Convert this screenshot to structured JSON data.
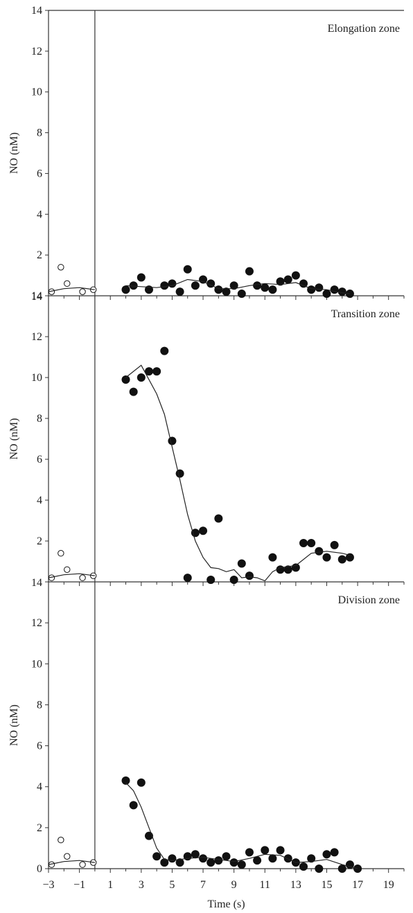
{
  "chart_data": [
    {
      "type": "scatter",
      "title": "Elongation zone",
      "xlabel": "",
      "ylabel": "NO (nM)",
      "xlim": [
        -3,
        20
      ],
      "ylim": [
        0,
        14
      ],
      "y_ticks": [
        14,
        12,
        10,
        8,
        6,
        4,
        2
      ],
      "bottom_tick_label": "14",
      "vertical_line_x": 0,
      "series": [
        {
          "marker": "open-circle",
          "x": [
            -2.8,
            -2.2,
            -1.8,
            -0.8,
            -0.1
          ],
          "y": [
            0.2,
            1.4,
            0.6,
            0.2,
            0.3
          ]
        },
        {
          "marker": "filled-circle",
          "x": [
            2.0,
            2.5,
            3.0,
            3.5,
            4.5,
            5.0,
            5.5,
            6.0,
            6.5,
            7.0,
            7.5,
            8.0,
            8.5,
            9.0,
            9.5,
            10.0,
            10.5,
            11.0,
            11.5,
            12.0,
            12.5,
            13.0,
            13.5,
            14.0,
            14.5,
            15.0,
            15.5,
            16.0,
            16.5
          ],
          "y": [
            0.3,
            0.5,
            0.9,
            0.3,
            0.5,
            0.6,
            0.2,
            1.3,
            0.5,
            0.8,
            0.6,
            0.3,
            0.2,
            0.5,
            0.1,
            1.2,
            0.5,
            0.4,
            0.3,
            0.7,
            0.8,
            1.0,
            0.6,
            0.3,
            0.4,
            0.1,
            0.3,
            0.2,
            0.1
          ]
        },
        {
          "marker": "line",
          "x": [
            -3,
            -2,
            -1,
            0
          ],
          "y": [
            0.2,
            0.35,
            0.4,
            0.3
          ]
        },
        {
          "marker": "line",
          "x": [
            2,
            3,
            4,
            5,
            6,
            7,
            8,
            9,
            10,
            11,
            12,
            13,
            14,
            15,
            16,
            16.5
          ],
          "y": [
            0.5,
            0.45,
            0.4,
            0.5,
            0.8,
            0.7,
            0.35,
            0.35,
            0.5,
            0.6,
            0.55,
            0.65,
            0.35,
            0.3,
            0.15,
            0.1
          ]
        }
      ]
    },
    {
      "type": "scatter",
      "title": "Transition zone",
      "xlabel": "",
      "ylabel": "NO (nM)",
      "xlim": [
        -3,
        20
      ],
      "ylim": [
        0,
        14
      ],
      "y_ticks": [
        14,
        12,
        10,
        8,
        6,
        4,
        2
      ],
      "bottom_tick_label": "14",
      "vertical_line_x": 0,
      "series": [
        {
          "marker": "open-circle",
          "x": [
            -2.8,
            -2.2,
            -1.8,
            -0.8,
            -0.1
          ],
          "y": [
            0.2,
            1.4,
            0.6,
            0.2,
            0.3
          ]
        },
        {
          "marker": "filled-circle",
          "x": [
            2.0,
            2.5,
            3.0,
            3.5,
            4.0,
            4.5,
            5.0,
            5.5,
            6.0,
            6.5,
            7.0,
            7.5,
            8.0,
            9.0,
            9.5,
            10.0,
            11.5,
            12.0,
            12.5,
            13.0,
            13.5,
            14.0,
            14.5,
            15.0,
            15.5,
            16.0,
            16.5
          ],
          "y": [
            9.9,
            9.3,
            10.0,
            10.3,
            10.3,
            11.3,
            6.9,
            5.3,
            0.2,
            2.4,
            2.5,
            0.1,
            3.1,
            0.1,
            0.9,
            0.3,
            1.2,
            0.6,
            0.6,
            0.7,
            1.9,
            1.9,
            1.5,
            1.2,
            1.8,
            1.1,
            1.2
          ]
        },
        {
          "marker": "line",
          "x": [
            -3,
            -2,
            -1,
            0
          ],
          "y": [
            0.2,
            0.35,
            0.4,
            0.3
          ]
        },
        {
          "marker": "line",
          "x": [
            2,
            3,
            4,
            4.5,
            5,
            5.5,
            6,
            6.5,
            7,
            7.5,
            8,
            8.5,
            9,
            9.5,
            10,
            10.5,
            11,
            11.5,
            12,
            13,
            14,
            15,
            16,
            16.5
          ],
          "y": [
            10.0,
            10.6,
            9.2,
            8.2,
            6.6,
            5.0,
            3.3,
            2.0,
            1.2,
            0.7,
            0.65,
            0.5,
            0.6,
            0.2,
            0.25,
            0.2,
            0.05,
            0.5,
            0.7,
            0.8,
            1.4,
            1.5,
            1.4,
            1.3
          ]
        }
      ]
    },
    {
      "type": "scatter",
      "title": "Division zone",
      "xlabel": "Time (s)",
      "ylabel": "NO (nM)",
      "xlim": [
        -3,
        20
      ],
      "ylim": [
        0,
        14
      ],
      "x_ticks": [
        -3,
        -1,
        1,
        3,
        5,
        7,
        9,
        11,
        13,
        15,
        17,
        19
      ],
      "x_tick_labels": [
        "−3",
        "−1",
        "1",
        "3",
        "5",
        "7",
        "9",
        "11",
        "13",
        "15",
        "17",
        "19"
      ],
      "y_ticks": [
        12,
        10,
        8,
        6,
        4,
        2,
        0
      ],
      "vertical_line_x": 0,
      "series": [
        {
          "marker": "open-circle",
          "x": [
            -2.8,
            -2.2,
            -1.8,
            -0.8,
            -0.1
          ],
          "y": [
            0.2,
            1.4,
            0.6,
            0.2,
            0.3
          ]
        },
        {
          "marker": "filled-circle",
          "x": [
            2.0,
            2.5,
            3.0,
            3.5,
            4.0,
            4.5,
            5.0,
            5.5,
            6.0,
            6.5,
            7.0,
            7.5,
            8.0,
            8.5,
            9.0,
            9.5,
            10.0,
            10.5,
            11.0,
            11.5,
            12.0,
            12.5,
            13.0,
            13.5,
            14.0,
            14.5,
            15.0,
            15.5,
            16.0,
            16.5,
            17.0
          ],
          "y": [
            4.3,
            3.1,
            4.2,
            1.6,
            0.6,
            0.3,
            0.5,
            0.3,
            0.6,
            0.7,
            0.5,
            0.3,
            0.4,
            0.6,
            0.3,
            0.2,
            0.8,
            0.4,
            0.9,
            0.5,
            0.9,
            0.5,
            0.3,
            0.1,
            0.5,
            0.0,
            0.7,
            0.8,
            0.0,
            0.2,
            0.0
          ]
        },
        {
          "marker": "line",
          "x": [
            -3,
            -2,
            -1,
            0
          ],
          "y": [
            0.2,
            0.35,
            0.4,
            0.3
          ]
        },
        {
          "marker": "line",
          "x": [
            2,
            2.5,
            3,
            3.5,
            4,
            4.5,
            5,
            6,
            7,
            8,
            9,
            10,
            11,
            12,
            13,
            14,
            15,
            16,
            17
          ],
          "y": [
            4.2,
            3.8,
            3.0,
            2.0,
            1.0,
            0.45,
            0.4,
            0.5,
            0.55,
            0.45,
            0.35,
            0.5,
            0.7,
            0.65,
            0.3,
            0.35,
            0.45,
            0.2,
            0.0
          ]
        }
      ]
    }
  ]
}
